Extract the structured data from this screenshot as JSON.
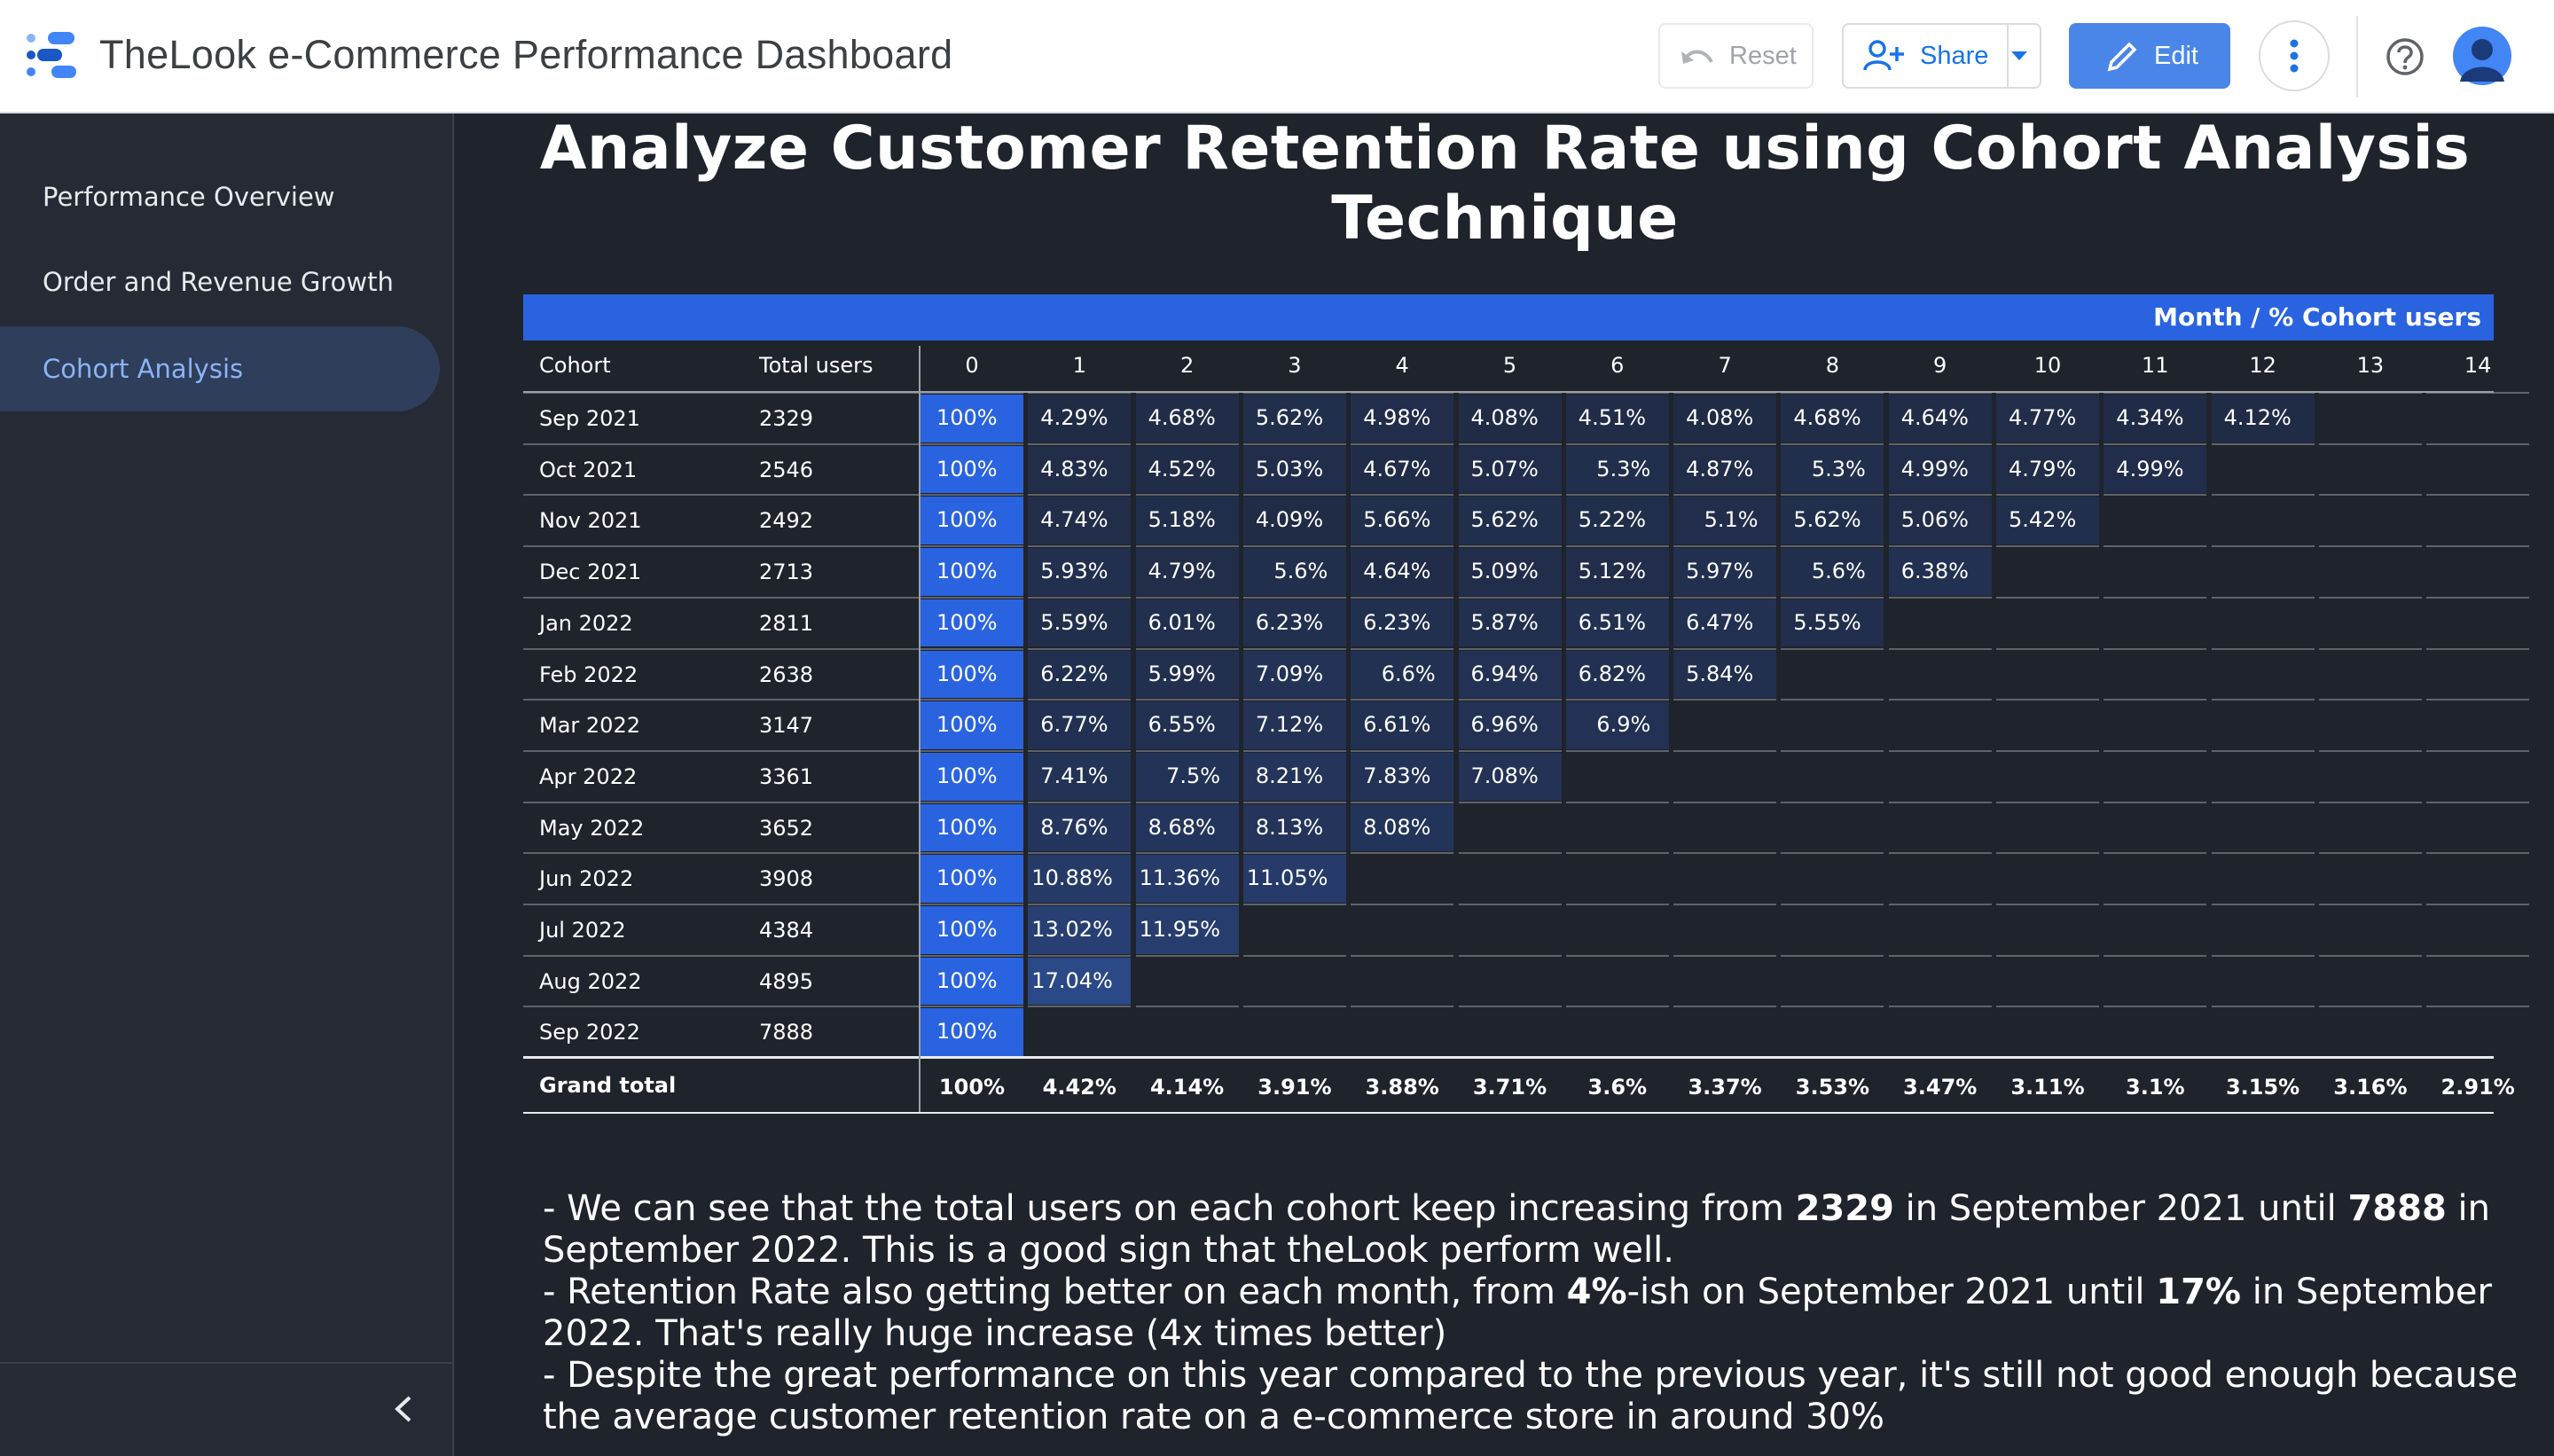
{
  "app": {
    "title": "TheLook e-Commerce Performance Dashboard"
  },
  "header": {
    "reset_label": "Reset",
    "share_label": "Share",
    "edit_label": "Edit"
  },
  "sidebar": {
    "items": [
      {
        "label": "Performance Overview",
        "active": false
      },
      {
        "label": "Order and Revenue Growth",
        "active": false
      },
      {
        "label": "Cohort Analysis",
        "active": true
      }
    ]
  },
  "page": {
    "title": "Analyze Customer Retention Rate using Cohort Analysis Technique"
  },
  "table": {
    "band_title": "Month / % Cohort users",
    "headers": {
      "cohort": "Cohort",
      "total_users": "Total users"
    },
    "months": [
      "0",
      "1",
      "2",
      "3",
      "4",
      "5",
      "6",
      "7",
      "8",
      "9",
      "10",
      "11",
      "12",
      "13",
      "14"
    ],
    "rows": [
      {
        "cohort": "Sep 2021",
        "users": "2329",
        "values": [
          "100%",
          "4.29%",
          "4.68%",
          "5.62%",
          "4.98%",
          "4.08%",
          "4.51%",
          "4.08%",
          "4.68%",
          "4.64%",
          "4.77%",
          "4.34%",
          "4.12%"
        ]
      },
      {
        "cohort": "Oct 2021",
        "users": "2546",
        "values": [
          "100%",
          "4.83%",
          "4.52%",
          "5.03%",
          "4.67%",
          "5.07%",
          "5.3%",
          "4.87%",
          "5.3%",
          "4.99%",
          "4.79%",
          "4.99%"
        ]
      },
      {
        "cohort": "Nov 2021",
        "users": "2492",
        "values": [
          "100%",
          "4.74%",
          "5.18%",
          "4.09%",
          "5.66%",
          "5.62%",
          "5.22%",
          "5.1%",
          "5.62%",
          "5.06%",
          "5.42%"
        ]
      },
      {
        "cohort": "Dec 2021",
        "users": "2713",
        "values": [
          "100%",
          "5.93%",
          "4.79%",
          "5.6%",
          "4.64%",
          "5.09%",
          "5.12%",
          "5.97%",
          "5.6%",
          "6.38%"
        ]
      },
      {
        "cohort": "Jan 2022",
        "users": "2811",
        "values": [
          "100%",
          "5.59%",
          "6.01%",
          "6.23%",
          "6.23%",
          "5.87%",
          "6.51%",
          "6.47%",
          "5.55%"
        ]
      },
      {
        "cohort": "Feb 2022",
        "users": "2638",
        "values": [
          "100%",
          "6.22%",
          "5.99%",
          "7.09%",
          "6.6%",
          "6.94%",
          "6.82%",
          "5.84%"
        ]
      },
      {
        "cohort": "Mar 2022",
        "users": "3147",
        "values": [
          "100%",
          "6.77%",
          "6.55%",
          "7.12%",
          "6.61%",
          "6.96%",
          "6.9%"
        ]
      },
      {
        "cohort": "Apr 2022",
        "users": "3361",
        "values": [
          "100%",
          "7.41%",
          "7.5%",
          "8.21%",
          "7.83%",
          "7.08%"
        ]
      },
      {
        "cohort": "May 2022",
        "users": "3652",
        "values": [
          "100%",
          "8.76%",
          "8.68%",
          "8.13%",
          "8.08%"
        ]
      },
      {
        "cohort": "Jun 2022",
        "users": "3908",
        "values": [
          "100%",
          "10.88%",
          "11.36%",
          "11.05%"
        ]
      },
      {
        "cohort": "Jul 2022",
        "users": "4384",
        "values": [
          "100%",
          "13.02%",
          "11.95%"
        ]
      },
      {
        "cohort": "Aug 2022",
        "users": "4895",
        "values": [
          "100%",
          "17.04%"
        ]
      },
      {
        "cohort": "Sep 2022",
        "users": "7888",
        "values": [
          "100%"
        ]
      }
    ],
    "grand_total": {
      "label": "Grand total",
      "values": [
        "100%",
        "4.42%",
        "4.14%",
        "3.91%",
        "3.88%",
        "3.71%",
        "3.6%",
        "3.37%",
        "3.53%",
        "3.47%",
        "3.11%",
        "3.1%",
        "3.15%",
        "3.16%",
        "2.91%"
      ]
    }
  },
  "notes": [
    {
      "parts": [
        {
          "t": "- We can see that the total users on each cohort keep increasing from ",
          "b": false
        },
        {
          "t": "2329",
          "b": true
        },
        {
          "t": " in September 2021 until ",
          "b": false
        },
        {
          "t": "7888",
          "b": true
        },
        {
          "t": " in September 2022. This is a good sign that theLook perform well.",
          "b": false
        }
      ]
    },
    {
      "parts": [
        {
          "t": "- Retention Rate also getting better on each month, from ",
          "b": false
        },
        {
          "t": "4%",
          "b": true
        },
        {
          "t": "-ish on September 2021 until ",
          "b": false
        },
        {
          "t": "17%",
          "b": true
        },
        {
          "t": " in September 2022. That's really huge increase (4x times better)",
          "b": false
        }
      ]
    },
    {
      "parts": [
        {
          "t": "- Despite the great performance on this year compared to the previous year, it's still not good enough because the average customer retention rate on a e-commerce store in around 30%",
          "b": false
        }
      ]
    }
  ],
  "colors": {
    "band": "#2a63e0",
    "month0_cell": "#2a63e0",
    "heat_low": "#202b45",
    "heat_high": "#2c4a8c",
    "accent": "#8ab4f8"
  },
  "icons": [
    "logo-icon",
    "undo-icon",
    "person-add-icon",
    "pencil-icon",
    "more-vert-icon",
    "help-icon",
    "account-icon",
    "chevron-left-icon"
  ]
}
